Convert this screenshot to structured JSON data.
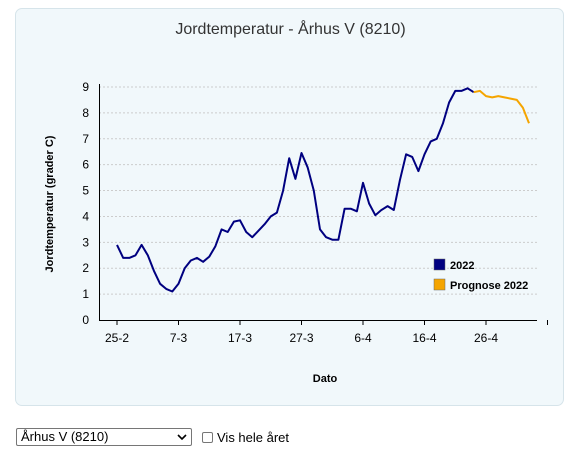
{
  "chart_data": {
    "type": "line",
    "title": "Jordtemperatur - Århus V (8210)",
    "xlabel": "Dato",
    "ylabel": "Jordtemperatur (grader C)",
    "ylim": [
      0,
      9
    ],
    "yticks": [
      "0",
      "1",
      "2",
      "3",
      "4",
      "5",
      "6",
      "7",
      "8",
      "9"
    ],
    "xticks": [
      "25-2",
      "7-3",
      "17-3",
      "27-3",
      "6-4",
      "16-4",
      "26-4"
    ],
    "grid": true,
    "legend": "bottom-right",
    "series": [
      {
        "name": "2022",
        "color": "#000080",
        "values": [
          2.9,
          2.4,
          2.4,
          2.5,
          2.9,
          2.5,
          1.9,
          1.4,
          1.2,
          1.1,
          1.4,
          2.0,
          2.3,
          2.4,
          2.25,
          2.45,
          2.85,
          3.5,
          3.4,
          3.8,
          3.85,
          3.4,
          3.2,
          3.45,
          3.7,
          4.0,
          4.15,
          5.0,
          6.25,
          5.45,
          6.45,
          5.9,
          5.0,
          3.5,
          3.2,
          3.1,
          3.1,
          4.3,
          4.3,
          4.2,
          5.3,
          4.5,
          4.05,
          4.25,
          4.4,
          4.25,
          5.4,
          6.4,
          6.3,
          5.75,
          6.4,
          6.9,
          7.0,
          7.6,
          8.4,
          8.85,
          8.85,
          8.95,
          8.8
        ]
      },
      {
        "name": "Prognose 2022",
        "color": "#f5a500",
        "values": [
          8.8,
          8.85,
          8.65,
          8.6,
          8.65,
          8.6,
          8.55,
          8.5,
          8.2,
          7.6
        ]
      }
    ]
  },
  "controls": {
    "station_selected": "Århus V (8210)",
    "checkbox_label": "Vis hele året"
  }
}
